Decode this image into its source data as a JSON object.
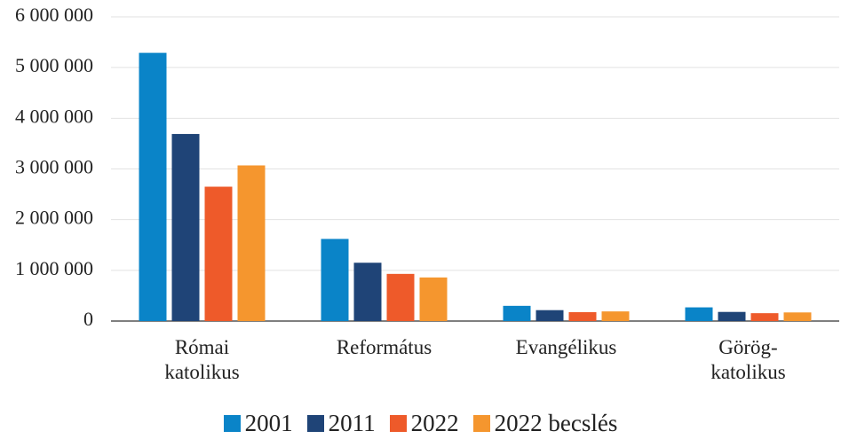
{
  "chart_data": {
    "type": "bar",
    "categories": [
      "Római katolikus",
      "Református",
      "Evangélikus",
      "Görög-katolikus"
    ],
    "series": [
      {
        "name": "2001",
        "color": "#0a84c8",
        "values": [
          5290000,
          1620000,
          300000,
          270000
        ]
      },
      {
        "name": "2011",
        "color": "#1f4477",
        "values": [
          3690000,
          1150000,
          215000,
          180000
        ]
      },
      {
        "name": "2022",
        "color": "#ee5a2a",
        "values": [
          2650000,
          930000,
          175000,
          155000
        ]
      },
      {
        "name": "2022 becslés",
        "color": "#f5962e",
        "values": [
          3070000,
          860000,
          190000,
          170000
        ]
      }
    ],
    "ylim": [
      0,
      6000000
    ],
    "yticks": [
      0,
      {
        "value": 1000000,
        "label": "1 000 000"
      },
      {
        "value": 2000000,
        "label": "2 000 000"
      },
      {
        "value": 3000000,
        "label": "3 000 000"
      },
      {
        "value": 4000000,
        "label": "4 000 000"
      },
      {
        "value": 5000000,
        "label": "5 000 000"
      },
      {
        "value": 6000000,
        "label": "6 000 000"
      }
    ],
    "grid": true
  }
}
